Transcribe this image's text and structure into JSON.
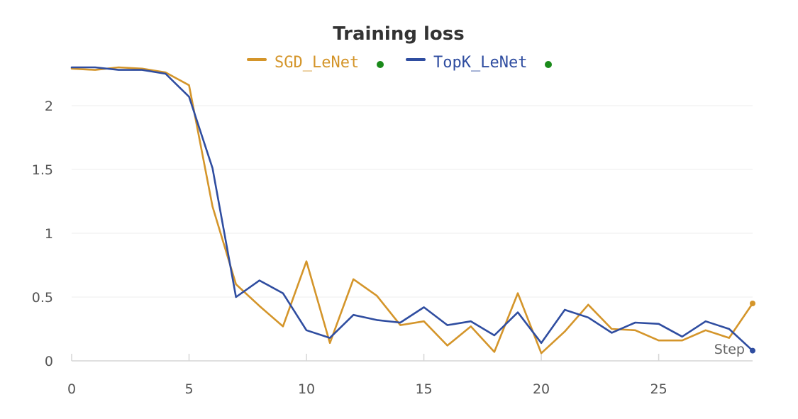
{
  "chart_data": {
    "type": "line",
    "title": "Training loss",
    "xlabel": "Step",
    "ylabel": "",
    "xlim": [
      0,
      29
    ],
    "ylim": [
      0,
      2.3
    ],
    "x_ticks": [
      0,
      5,
      10,
      15,
      20,
      25
    ],
    "y_ticks": [
      0,
      0.5,
      1,
      1.5,
      2
    ],
    "grid": true,
    "legend_position": "top-center",
    "x": [
      0,
      1,
      2,
      3,
      4,
      5,
      6,
      7,
      8,
      9,
      10,
      11,
      12,
      13,
      14,
      15,
      16,
      17,
      18,
      19,
      20,
      21,
      22,
      23,
      24,
      25,
      26,
      27,
      28,
      29
    ],
    "series": [
      {
        "name": "SGD_LeNet",
        "color": "#d4952a",
        "status_color": "#1a8a1a",
        "values": [
          2.29,
          2.28,
          2.3,
          2.29,
          2.26,
          2.16,
          1.21,
          0.6,
          0.43,
          0.27,
          0.78,
          0.14,
          0.64,
          0.51,
          0.28,
          0.31,
          0.12,
          0.27,
          0.07,
          0.53,
          0.06,
          0.23,
          0.44,
          0.25,
          0.24,
          0.16,
          0.16,
          0.24,
          0.18,
          0.45
        ]
      },
      {
        "name": "TopK_LeNet",
        "color": "#2f4da0",
        "status_color": "#1a8a1a",
        "values": [
          2.3,
          2.3,
          2.28,
          2.28,
          2.25,
          2.07,
          1.51,
          0.5,
          0.63,
          0.53,
          0.24,
          0.18,
          0.36,
          0.32,
          0.3,
          0.42,
          0.28,
          0.31,
          0.2,
          0.38,
          0.14,
          0.4,
          0.34,
          0.22,
          0.3,
          0.29,
          0.19,
          0.31,
          0.25,
          0.08
        ]
      }
    ]
  }
}
